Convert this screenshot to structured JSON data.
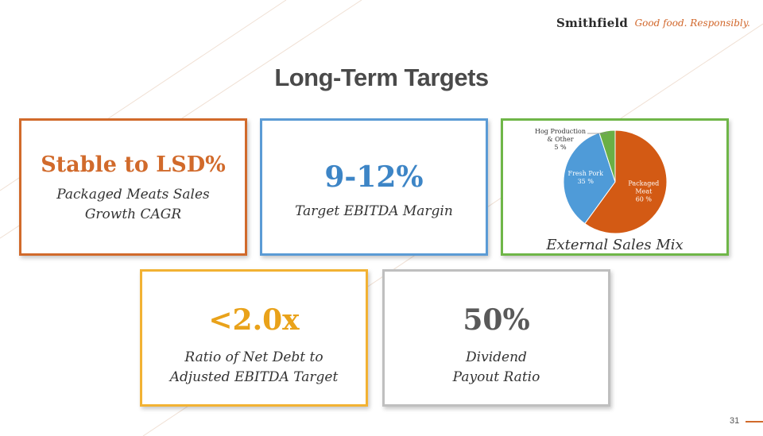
{
  "logo": {
    "brand": "Smithfield",
    "tagline": "Good food. Responsibly."
  },
  "title": "Long-Term Targets",
  "cards": [
    {
      "headline": "Stable to LSD%",
      "lines": [
        "Packaged Meats Sales",
        "Growth CAGR"
      ],
      "accent": "#d16a2b"
    },
    {
      "headline": "9-12%",
      "lines": [
        "Target EBITDA Margin"
      ],
      "accent": "#5b9bd5"
    },
    {
      "caption": "External Sales Mix",
      "accent": "#6fb648"
    },
    {
      "headline": "<2.0x",
      "lines": [
        "Ratio of Net Debt to",
        "Adjusted EBITDA Target"
      ],
      "accent": "#f2b233"
    },
    {
      "headline": "50%",
      "lines": [
        "Dividend",
        "Payout Ratio"
      ],
      "accent": "#bfbfbf"
    }
  ],
  "chart_data": {
    "type": "pie",
    "title": "External Sales Mix",
    "slices": [
      {
        "label_lines": [
          "Packaged",
          "Meat"
        ],
        "value_label": "60 %",
        "value": 60,
        "color": "#d35a14"
      },
      {
        "label_lines": [
          "Fresh Pork"
        ],
        "value_label": "35 %",
        "value": 35,
        "color": "#4f9bd8"
      },
      {
        "label_lines": [
          "Hog Production",
          "& Other"
        ],
        "value_label": "5 %",
        "value": 5,
        "color": "#6aaf45"
      }
    ]
  },
  "page_number": "31"
}
